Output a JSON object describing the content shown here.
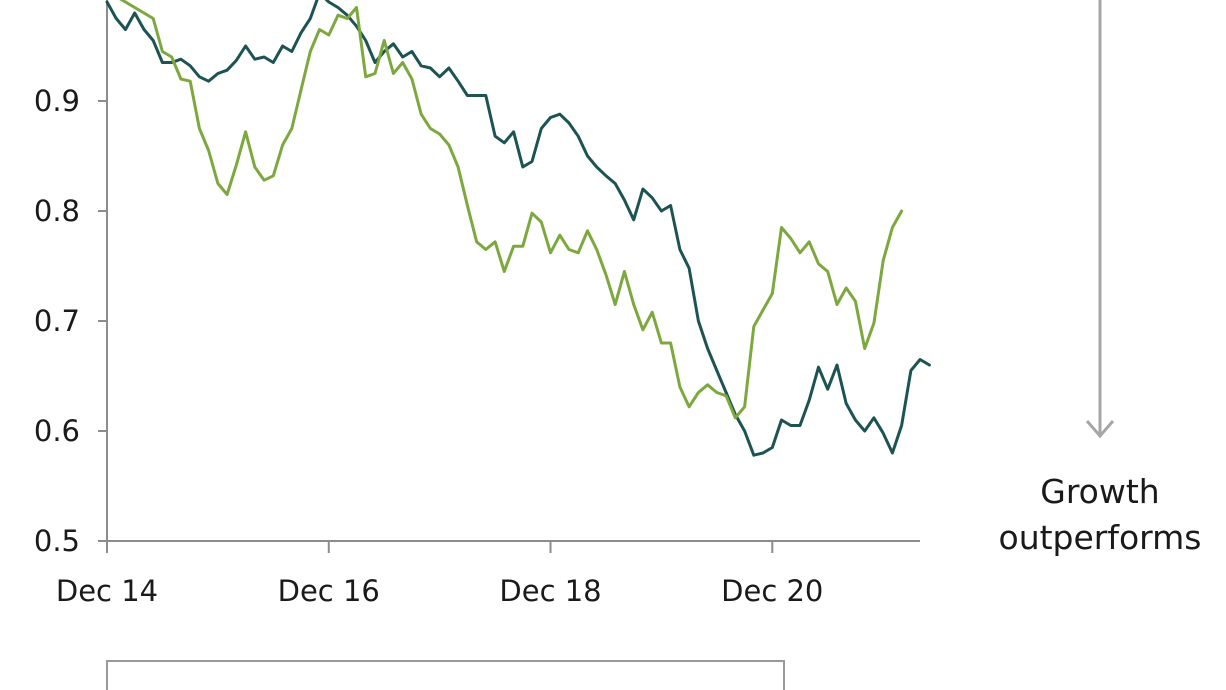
{
  "chart_data": {
    "type": "line",
    "title": "",
    "xlabel": "",
    "ylabel": "",
    "x_ticks": [
      "Dec 14",
      "Dec 16",
      "Dec 18",
      "Dec 20"
    ],
    "y_ticks": [
      "0.5",
      "0.6",
      "0.7",
      "0.8",
      "0.9"
    ],
    "ylim": [
      0.5,
      1.0
    ],
    "grid": false,
    "series": [
      {
        "color": "#1d5353",
        "points": [
          [
            "Dec 14",
            0.99
          ],
          [
            "Jan 15",
            0.975
          ],
          [
            "Feb 15",
            0.965
          ],
          [
            "Mar 15",
            0.98
          ],
          [
            "Apr 15",
            0.965
          ],
          [
            "May 15",
            0.955
          ],
          [
            "Jun 15",
            0.935
          ],
          [
            "Jul 15",
            0.935
          ],
          [
            "Aug 15",
            0.938
          ],
          [
            "Sep 15",
            0.932
          ],
          [
            "Oct 15",
            0.922
          ],
          [
            "Nov 15",
            0.918
          ],
          [
            "Dec 15",
            0.925
          ],
          [
            "Jan 16",
            0.928
          ],
          [
            "Feb 16",
            0.937
          ],
          [
            "Mar 16",
            0.95
          ],
          [
            "Apr 16",
            0.938
          ],
          [
            "May 16",
            0.94
          ],
          [
            "Jun 16",
            0.935
          ],
          [
            "Jul 16",
            0.95
          ],
          [
            "Aug 16",
            0.945
          ],
          [
            "Sep 16",
            0.962
          ],
          [
            "Oct 16",
            0.975
          ],
          [
            "Nov 16",
            0.998
          ],
          [
            "Dec 16",
            0.99
          ],
          [
            "Jan 17",
            0.985
          ],
          [
            "Feb 17",
            0.978
          ],
          [
            "Mar 17",
            0.968
          ],
          [
            "Apr 17",
            0.955
          ],
          [
            "May 17",
            0.935
          ],
          [
            "Jun 17",
            0.945
          ],
          [
            "Jul 17",
            0.952
          ],
          [
            "Aug 17",
            0.94
          ],
          [
            "Sep 17",
            0.945
          ],
          [
            "Oct 17",
            0.932
          ],
          [
            "Nov 17",
            0.93
          ],
          [
            "Dec 17",
            0.922
          ],
          [
            "Jan 18",
            0.93
          ],
          [
            "Feb 18",
            0.918
          ],
          [
            "Mar 18",
            0.905
          ],
          [
            "Apr 18",
            0.905
          ],
          [
            "May 18",
            0.905
          ],
          [
            "Jun 18",
            0.868
          ],
          [
            "Jul 18",
            0.862
          ],
          [
            "Aug 18",
            0.872
          ],
          [
            "Sep 18",
            0.84
          ],
          [
            "Oct 18",
            0.845
          ],
          [
            "Nov 18",
            0.875
          ],
          [
            "Dec 18",
            0.885
          ],
          [
            "Jan 19",
            0.888
          ],
          [
            "Feb 19",
            0.88
          ],
          [
            "Mar 19",
            0.868
          ],
          [
            "Apr 19",
            0.85
          ],
          [
            "May 19",
            0.84
          ],
          [
            "Jun 19",
            0.832
          ],
          [
            "Jul 19",
            0.825
          ],
          [
            "Aug 19",
            0.81
          ],
          [
            "Sep 19",
            0.792
          ],
          [
            "Oct 19",
            0.82
          ],
          [
            "Nov 19",
            0.812
          ],
          [
            "Dec 19",
            0.8
          ],
          [
            "Jan 20",
            0.805
          ],
          [
            "Feb 20",
            0.765
          ],
          [
            "Mar 20",
            0.748
          ],
          [
            "Apr 20",
            0.7
          ],
          [
            "May 20",
            0.675
          ],
          [
            "Jun 20",
            0.655
          ],
          [
            "Jul 20",
            0.635
          ],
          [
            "Aug 20",
            0.615
          ],
          [
            "Sep 20",
            0.6
          ],
          [
            "Oct 20",
            0.578
          ],
          [
            "Nov 20",
            0.58
          ],
          [
            "Dec 20",
            0.585
          ],
          [
            "Jan 21",
            0.61
          ],
          [
            "Feb 21",
            0.605
          ],
          [
            "Mar 21",
            0.605
          ],
          [
            "Apr 21",
            0.628
          ],
          [
            "May 21",
            0.658
          ],
          [
            "Jun 21",
            0.638
          ],
          [
            "Jul 21",
            0.66
          ],
          [
            "Aug 21",
            0.625
          ],
          [
            "Sep 21",
            0.61
          ],
          [
            "Oct 21",
            0.6
          ],
          [
            "Nov 21",
            0.612
          ],
          [
            "Dec 21",
            0.598
          ],
          [
            "Jan 22",
            0.58
          ],
          [
            "Feb 22",
            0.605
          ],
          [
            "Mar 22",
            0.655
          ],
          [
            "Apr 22",
            0.665
          ],
          [
            "May 22",
            0.66
          ]
        ]
      },
      {
        "color": "#7ca83e",
        "points": [
          [
            "Dec 14",
            1.005
          ],
          [
            "Jan 15",
            0.995
          ],
          [
            "Feb 15",
            0.99
          ],
          [
            "Mar 15",
            0.985
          ],
          [
            "Apr 15",
            0.98
          ],
          [
            "May 15",
            0.975
          ],
          [
            "Jun 15",
            0.945
          ],
          [
            "Jul 15",
            0.94
          ],
          [
            "Aug 15",
            0.92
          ],
          [
            "Sep 15",
            0.918
          ],
          [
            "Oct 15",
            0.875
          ],
          [
            "Nov 15",
            0.855
          ],
          [
            "Dec 15",
            0.825
          ],
          [
            "Jan 16",
            0.815
          ],
          [
            "Feb 16",
            0.842
          ],
          [
            "Mar 16",
            0.872
          ],
          [
            "Apr 16",
            0.84
          ],
          [
            "May 16",
            0.828
          ],
          [
            "Jun 16",
            0.832
          ],
          [
            "Jul 16",
            0.86
          ],
          [
            "Aug 16",
            0.875
          ],
          [
            "Sep 16",
            0.91
          ],
          [
            "Oct 16",
            0.945
          ],
          [
            "Nov 16",
            0.965
          ],
          [
            "Dec 16",
            0.96
          ],
          [
            "Jan 17",
            0.978
          ],
          [
            "Feb 17",
            0.975
          ],
          [
            "Mar 17",
            0.985
          ],
          [
            "Apr 17",
            0.922
          ],
          [
            "May 17",
            0.925
          ],
          [
            "Jun 17",
            0.955
          ],
          [
            "Jul 17",
            0.925
          ],
          [
            "Aug 17",
            0.935
          ],
          [
            "Sep 17",
            0.92
          ],
          [
            "Oct 17",
            0.888
          ],
          [
            "Nov 17",
            0.875
          ],
          [
            "Dec 17",
            0.87
          ],
          [
            "Jan 18",
            0.86
          ],
          [
            "Feb 18",
            0.84
          ],
          [
            "Mar 18",
            0.805
          ],
          [
            "Apr 18",
            0.772
          ],
          [
            "May 18",
            0.765
          ],
          [
            "Jun 18",
            0.772
          ],
          [
            "Jul 18",
            0.745
          ],
          [
            "Aug 18",
            0.768
          ],
          [
            "Sep 18",
            0.768
          ],
          [
            "Oct 18",
            0.798
          ],
          [
            "Nov 18",
            0.79
          ],
          [
            "Dec 18",
            0.762
          ],
          [
            "Jan 19",
            0.778
          ],
          [
            "Feb 19",
            0.765
          ],
          [
            "Mar 19",
            0.762
          ],
          [
            "Apr 19",
            0.782
          ],
          [
            "May 19",
            0.765
          ],
          [
            "Jun 19",
            0.742
          ],
          [
            "Jul 19",
            0.715
          ],
          [
            "Aug 19",
            0.745
          ],
          [
            "Sep 19",
            0.715
          ],
          [
            "Oct 19",
            0.692
          ],
          [
            "Nov 19",
            0.708
          ],
          [
            "Dec 19",
            0.68
          ],
          [
            "Jan 20",
            0.68
          ],
          [
            "Feb 20",
            0.64
          ],
          [
            "Mar 20",
            0.622
          ],
          [
            "Apr 20",
            0.635
          ],
          [
            "May 20",
            0.642
          ],
          [
            "Jun 20",
            0.635
          ],
          [
            "Jul 20",
            0.632
          ],
          [
            "Aug 20",
            0.612
          ],
          [
            "Sep 20",
            0.622
          ],
          [
            "Oct 20",
            0.695
          ],
          [
            "Nov 20",
            0.71
          ],
          [
            "Dec 20",
            0.725
          ],
          [
            "Jan 21",
            0.785
          ],
          [
            "Feb 21",
            0.775
          ],
          [
            "Mar 21",
            0.762
          ],
          [
            "Apr 21",
            0.772
          ],
          [
            "May 21",
            0.752
          ],
          [
            "Jun 21",
            0.745
          ],
          [
            "Jul 21",
            0.715
          ],
          [
            "Aug 21",
            0.73
          ],
          [
            "Sep 21",
            0.718
          ],
          [
            "Oct 21",
            0.675
          ],
          [
            "Nov 21",
            0.698
          ],
          [
            "Dec 21",
            0.755
          ],
          [
            "Jan 22",
            0.785
          ],
          [
            "Feb 22",
            0.8
          ]
        ]
      }
    ],
    "annotations": {
      "bottom_label_line1": "Growth",
      "bottom_label_line2": "outperforms"
    }
  }
}
